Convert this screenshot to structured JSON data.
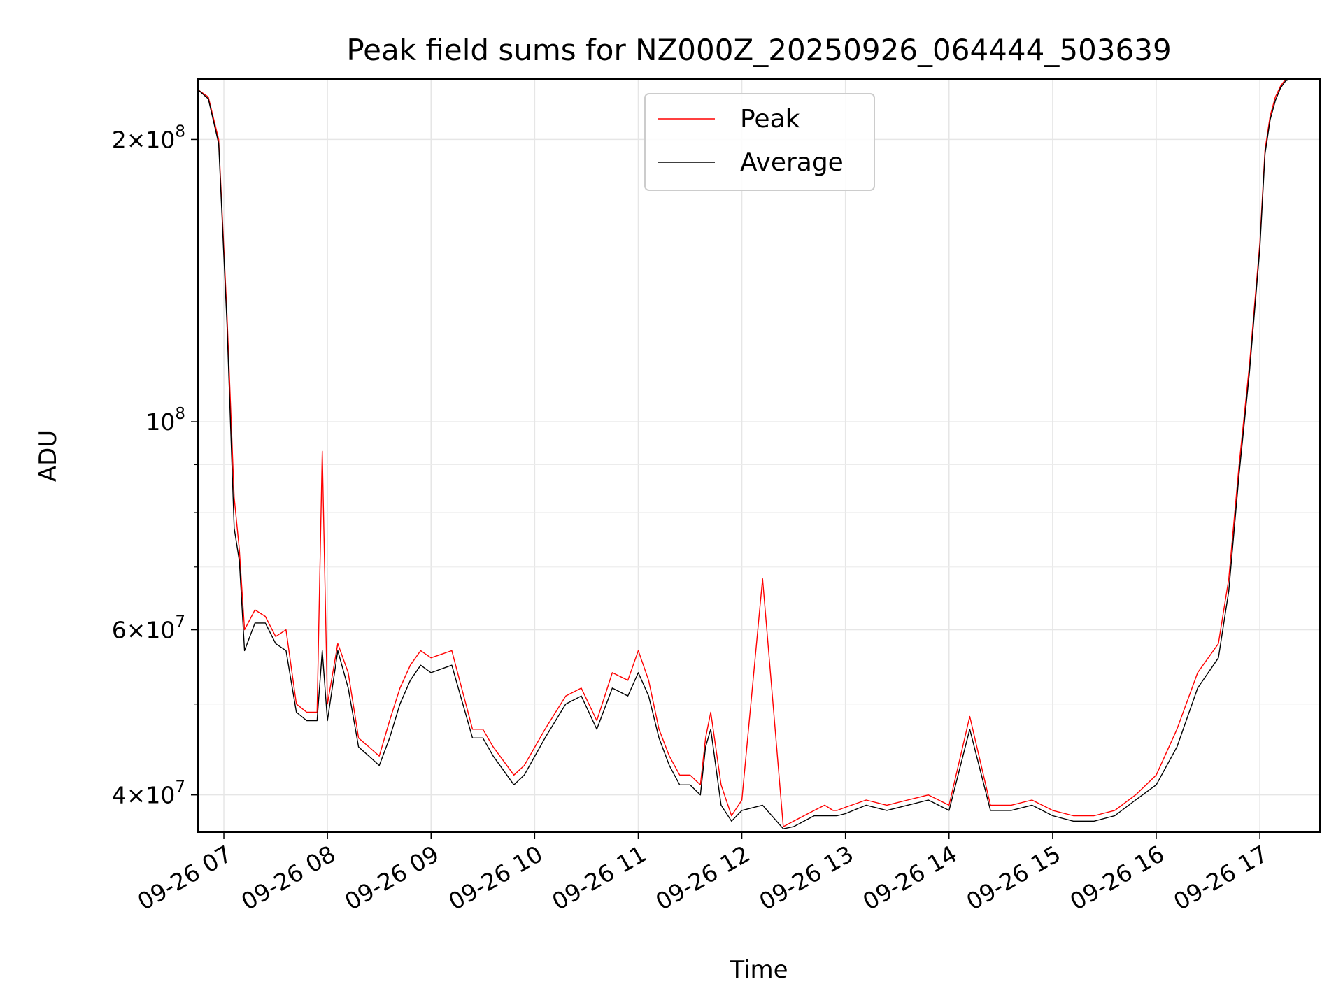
{
  "chart_data": {
    "type": "line",
    "title": "Peak field sums for NZ000Z_20250926_064444_503639",
    "xlabel": "Time",
    "ylabel": "ADU",
    "yscale": "log",
    "grid": true,
    "legend_position": "upper-center",
    "xlim_hours": [
      6.75,
      17.58
    ],
    "ylim": [
      36500000,
      232000000
    ],
    "x_ticks": [
      {
        "hour": 7,
        "label": "09-26 07"
      },
      {
        "hour": 8,
        "label": "09-26 08"
      },
      {
        "hour": 9,
        "label": "09-26 09"
      },
      {
        "hour": 10,
        "label": "09-26 10"
      },
      {
        "hour": 11,
        "label": "09-26 11"
      },
      {
        "hour": 12,
        "label": "09-26 12"
      },
      {
        "hour": 13,
        "label": "09-26 13"
      },
      {
        "hour": 14,
        "label": "09-26 14"
      },
      {
        "hour": 15,
        "label": "09-26 15"
      },
      {
        "hour": 16,
        "label": "09-26 16"
      },
      {
        "hour": 17,
        "label": "09-26 17"
      }
    ],
    "y_ticks": [
      {
        "value": 40000000,
        "mant": "4",
        "sym": "×10",
        "exp": "7"
      },
      {
        "value": 60000000,
        "mant": "6",
        "sym": "×10",
        "exp": "7"
      },
      {
        "value": 100000000,
        "mant": "",
        "sym": "10",
        "exp": "8"
      },
      {
        "value": 200000000,
        "mant": "2",
        "sym": "×10",
        "exp": "8"
      }
    ],
    "y_minor_ticks": [
      50000000,
      70000000,
      80000000,
      90000000
    ],
    "series": [
      {
        "name": "Peak",
        "color": "#ff0000",
        "x": [
          6.75,
          6.85,
          6.95,
          7.03,
          7.1,
          7.15,
          7.2,
          7.3,
          7.4,
          7.5,
          7.6,
          7.7,
          7.8,
          7.9,
          7.95,
          8.0,
          8.1,
          8.2,
          8.3,
          8.4,
          8.5,
          8.6,
          8.7,
          8.8,
          8.9,
          9.0,
          9.2,
          9.4,
          9.5,
          9.6,
          9.8,
          9.9,
          10.1,
          10.3,
          10.45,
          10.6,
          10.75,
          10.9,
          11.0,
          11.1,
          11.2,
          11.3,
          11.4,
          11.5,
          11.6,
          11.65,
          11.7,
          11.8,
          11.9,
          12.0,
          12.2,
          12.4,
          12.5,
          12.6,
          12.7,
          12.8,
          12.88,
          12.92,
          13.0,
          13.2,
          13.4,
          13.6,
          13.8,
          14.0,
          14.2,
          14.4,
          14.6,
          14.8,
          14.9,
          15.0,
          15.2,
          15.4,
          15.6,
          15.8,
          16.0,
          16.2,
          16.4,
          16.6,
          16.7,
          16.8,
          16.9,
          17.0,
          17.05,
          17.1,
          17.15,
          17.2,
          17.25,
          17.3,
          17.35,
          17.4,
          17.45,
          17.5,
          17.58
        ],
        "values": [
          226000000,
          222000000,
          200000000,
          130000000,
          83000000,
          73000000,
          60000000,
          63000000,
          62000000,
          59000000,
          60000000,
          50000000,
          49000000,
          49000000,
          93000000,
          50000000,
          58000000,
          54000000,
          46000000,
          45000000,
          44000000,
          48000000,
          52000000,
          55000000,
          57000000,
          56000000,
          57000000,
          47000000,
          47000000,
          45000000,
          42000000,
          43000000,
          47000000,
          51000000,
          52000000,
          48000000,
          54000000,
          53000000,
          57000000,
          53000000,
          47000000,
          44000000,
          42000000,
          42000000,
          41000000,
          46000000,
          49000000,
          41000000,
          38000000,
          39500000,
          68000000,
          37000000,
          37500000,
          38000000,
          38500000,
          39000000,
          38500000,
          38500000,
          38800000,
          39500000,
          39000000,
          39500000,
          40000000,
          39000000,
          48500000,
          39000000,
          39000000,
          39500000,
          39000000,
          38500000,
          38000000,
          38000000,
          38500000,
          40000000,
          42000000,
          47000000,
          54000000,
          58000000,
          68000000,
          90000000,
          115000000,
          155000000,
          195000000,
          212000000,
          222000000,
          228000000,
          232000000,
          232000000,
          232000000,
          232000000,
          232000000,
          232000000,
          232000000
        ]
      },
      {
        "name": "Average",
        "color": "#000000",
        "x": [
          6.75,
          6.85,
          6.95,
          7.03,
          7.1,
          7.15,
          7.2,
          7.3,
          7.4,
          7.5,
          7.6,
          7.7,
          7.8,
          7.9,
          7.95,
          8.0,
          8.1,
          8.2,
          8.3,
          8.4,
          8.5,
          8.6,
          8.7,
          8.8,
          8.9,
          9.0,
          9.2,
          9.4,
          9.5,
          9.6,
          9.8,
          9.9,
          10.1,
          10.3,
          10.45,
          10.6,
          10.75,
          10.9,
          11.0,
          11.1,
          11.2,
          11.3,
          11.4,
          11.5,
          11.6,
          11.65,
          11.7,
          11.8,
          11.9,
          12.0,
          12.2,
          12.4,
          12.5,
          12.6,
          12.7,
          12.8,
          12.88,
          12.92,
          13.0,
          13.2,
          13.4,
          13.6,
          13.8,
          14.0,
          14.2,
          14.4,
          14.6,
          14.8,
          14.9,
          15.0,
          15.2,
          15.4,
          15.6,
          15.8,
          16.0,
          16.2,
          16.4,
          16.6,
          16.7,
          16.8,
          16.9,
          17.0,
          17.05,
          17.1,
          17.15,
          17.2,
          17.25,
          17.3,
          17.35,
          17.4,
          17.45,
          17.5,
          17.58
        ],
        "values": [
          226000000,
          221000000,
          198000000,
          127000000,
          77000000,
          71000000,
          57000000,
          61000000,
          61000000,
          58000000,
          57000000,
          49000000,
          48000000,
          48000000,
          57000000,
          48000000,
          57000000,
          52000000,
          45000000,
          44000000,
          43000000,
          46000000,
          50000000,
          53000000,
          55000000,
          54000000,
          55000000,
          46000000,
          46000000,
          44000000,
          41000000,
          42000000,
          46000000,
          50000000,
          51000000,
          47000000,
          52000000,
          51000000,
          54000000,
          51000000,
          46000000,
          43000000,
          41000000,
          41000000,
          40000000,
          45000000,
          47000000,
          39000000,
          37500000,
          38500000,
          39000000,
          36800000,
          37000000,
          37500000,
          38000000,
          38000000,
          38000000,
          38000000,
          38200000,
          39000000,
          38500000,
          39000000,
          39500000,
          38500000,
          47000000,
          38500000,
          38500000,
          39000000,
          38500000,
          38000000,
          37500000,
          37500000,
          38000000,
          39500000,
          41000000,
          45000000,
          52000000,
          56000000,
          66000000,
          88000000,
          113000000,
          153000000,
          193000000,
          210000000,
          220000000,
          227000000,
          231000000,
          232000000,
          232000000,
          232000000,
          232000000,
          232000000,
          232000000
        ]
      }
    ]
  }
}
